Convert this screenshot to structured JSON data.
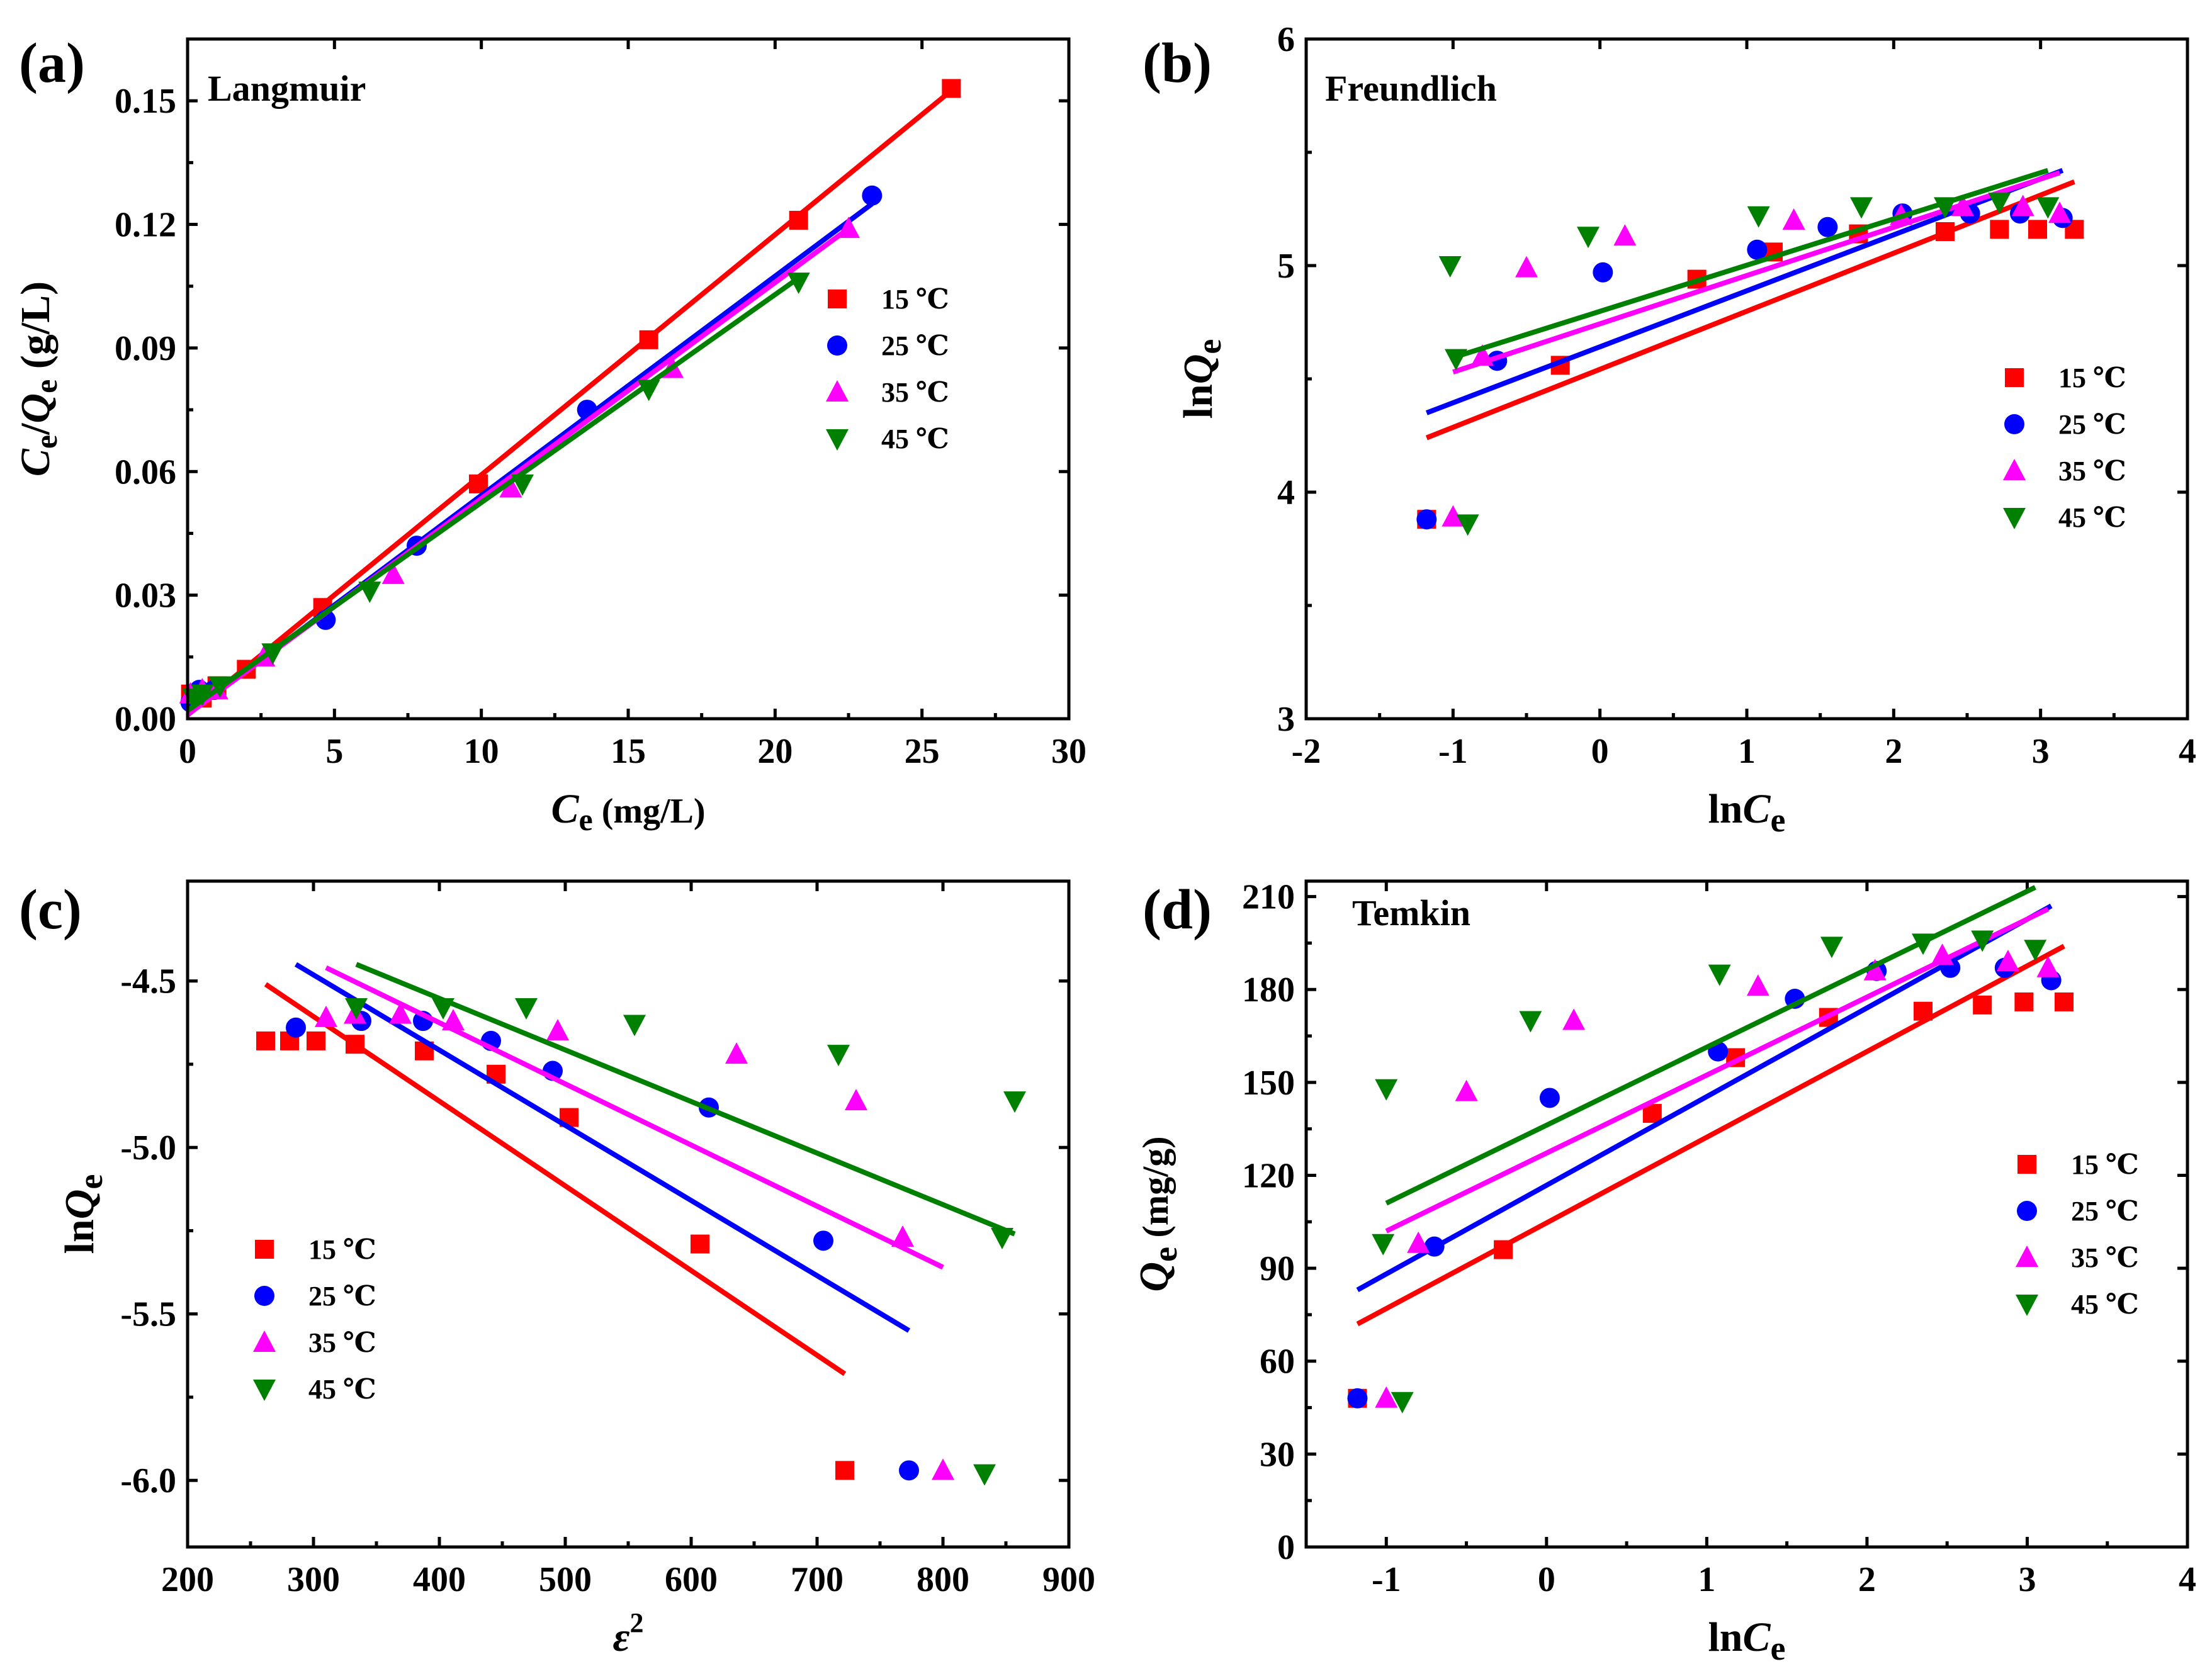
{
  "figure": {
    "domain": "adsorption isotherm fits"
  },
  "legend_labels": [
    "15 ℃",
    "25 ℃",
    "35 ℃",
    "45 ℃"
  ],
  "colors": {
    "s15": "#ff0000",
    "s25": "#0000ff",
    "s35": "#ff00ff",
    "s45": "#008000"
  },
  "markers": {
    "s15": "square",
    "s25": "circle",
    "s35": "triangle-up",
    "s45": "triangle-down"
  },
  "chart_data": [
    {
      "id": "a",
      "type": "scatter",
      "panel_label": "(a)",
      "annotation": "Langmuir",
      "title": "",
      "xlabel": {
        "main": "C",
        "sub": "e",
        "rest": " (mg/L)"
      },
      "ylabel": {
        "p1": "C",
        "s1": "e",
        "mid": "/",
        "p2": "Q",
        "s2": "e",
        "rest": " (g/L)"
      },
      "xlim": [
        0,
        30
      ],
      "ylim": [
        0,
        0.165
      ],
      "xticks": [
        0,
        5,
        10,
        15,
        20,
        25,
        30
      ],
      "yticks": [
        0.0,
        0.03,
        0.06,
        0.09,
        0.12,
        0.15
      ],
      "ytick_labels": [
        "0.00",
        "0.03",
        "0.06",
        "0.09",
        "0.12",
        "0.15"
      ],
      "legend_position": "middle-right",
      "series": [
        {
          "name": "15 ℃",
          "x": [
            0.1,
            0.5,
            1.0,
            2.0,
            4.6,
            9.9,
            15.7,
            20.8,
            26.0
          ],
          "y": [
            0.006,
            0.005,
            0.008,
            0.012,
            0.027,
            0.057,
            0.092,
            0.121,
            0.153
          ],
          "fit": [
            [
              0,
              0.0009
            ],
            [
              26,
              0.1525
            ]
          ]
        },
        {
          "name": "25 ℃",
          "x": [
            0.1,
            0.4,
            0.9,
            4.7,
            7.8,
            13.6,
            23.3
          ],
          "y": [
            0.004,
            0.007,
            0.007,
            0.024,
            0.042,
            0.075,
            0.127
          ],
          "fit": [
            [
              0,
              0.001
            ],
            [
              23.3,
              0.125
            ]
          ]
        },
        {
          "name": "35 ℃",
          "x": [
            0.1,
            0.5,
            1.0,
            2.6,
            7.0,
            11.0,
            16.5,
            22.5
          ],
          "y": [
            0.006,
            0.007,
            0.007,
            0.015,
            0.035,
            0.056,
            0.085,
            0.119
          ],
          "fit": [
            [
              0,
              0.001
            ],
            [
              22.5,
              0.119
            ]
          ]
        },
        {
          "name": "45 ℃",
          "x": [
            0.2,
            0.5,
            1.1,
            2.9,
            6.2,
            11.4,
            15.7,
            20.8
          ],
          "y": [
            0.005,
            0.006,
            0.008,
            0.016,
            0.031,
            0.057,
            0.08,
            0.106
          ],
          "fit": [
            [
              0,
              0.002
            ],
            [
              20.8,
              0.107
            ]
          ]
        }
      ]
    },
    {
      "id": "b",
      "type": "scatter",
      "panel_label": "(b)",
      "annotation": "Freundlich",
      "title": "",
      "xlabel": {
        "main": "ln",
        "ital": "C",
        "sub": "e"
      },
      "ylabel": {
        "main": "ln",
        "ital": "Q",
        "sub": "e"
      },
      "xlim": [
        -2,
        4
      ],
      "ylim": [
        3,
        6
      ],
      "xticks": [
        -2,
        -1,
        0,
        1,
        2,
        3,
        4
      ],
      "yticks": [
        3,
        4,
        5,
        6
      ],
      "ytick_labels": [
        "3",
        "4",
        "5",
        "6"
      ],
      "legend_position": "middle-right",
      "series": [
        {
          "name": "15 ℃",
          "x": [
            -1.18,
            -0.27,
            0.66,
            1.18,
            1.76,
            2.35,
            2.72,
            2.98,
            3.23
          ],
          "y": [
            3.88,
            4.56,
            4.94,
            5.06,
            5.14,
            5.15,
            5.16,
            5.16,
            5.16
          ],
          "fit": [
            [
              -1.18,
              4.24
            ],
            [
              3.23,
              5.37
            ]
          ]
        },
        {
          "name": "25 ℃",
          "x": [
            -1.18,
            -0.7,
            0.02,
            1.07,
            1.55,
            2.06,
            2.52,
            2.86,
            3.15
          ],
          "y": [
            3.88,
            4.58,
            4.97,
            5.07,
            5.17,
            5.23,
            5.23,
            5.23,
            5.21
          ],
          "fit": [
            [
              -1.18,
              4.35
            ],
            [
              3.15,
              5.42
            ]
          ]
        },
        {
          "name": "35 ℃",
          "x": [
            -1.0,
            -0.8,
            -0.5,
            0.17,
            1.32,
            2.05,
            2.47,
            2.88,
            3.13
          ],
          "y": [
            3.89,
            4.6,
            4.99,
            5.13,
            5.2,
            5.22,
            5.26,
            5.26,
            5.23
          ],
          "fit": [
            [
              -1.0,
              4.53
            ],
            [
              3.13,
              5.41
            ]
          ]
        },
        {
          "name": "45 ℃",
          "x": [
            -1.02,
            -0.9,
            -0.98,
            -0.08,
            1.08,
            1.78,
            2.35,
            2.72,
            3.05
          ],
          "y": [
            5.0,
            3.86,
            4.59,
            5.13,
            5.22,
            5.26,
            5.26,
            5.28,
            5.26
          ],
          "fit": [
            [
              -1.02,
              4.59
            ],
            [
              3.05,
              5.42
            ]
          ]
        }
      ]
    },
    {
      "id": "c",
      "type": "scatter",
      "panel_label": "(c)",
      "annotation": "",
      "title": "",
      "xlabel": {
        "main": "ε",
        "sup": "2"
      },
      "ylabel": {
        "main": "ln",
        "ital": "Q",
        "sub": "e"
      },
      "xlim": [
        200,
        900
      ],
      "ylim": [
        -6.2,
        -4.2
      ],
      "xticks": [
        200,
        300,
        400,
        500,
        600,
        700,
        800,
        900
      ],
      "yticks": [
        -6.0,
        -5.5,
        -5.0,
        -4.5
      ],
      "ytick_labels": [
        "-6.0",
        "-5.5",
        "-5.0",
        "-4.5"
      ],
      "legend_position": "lower-left",
      "series": [
        {
          "name": "15 ℃",
          "x": [
            262,
            281,
            302,
            333,
            388,
            445,
            503,
            607,
            722
          ],
          "y": [
            -4.68,
            -4.68,
            -4.68,
            -4.69,
            -4.71,
            -4.78,
            -4.91,
            -5.29,
            -5.97
          ],
          "fit": [
            [
              262,
              -4.51
            ],
            [
              722,
              -5.68
            ]
          ]
        },
        {
          "name": "25 ℃",
          "x": [
            286,
            338,
            387,
            441,
            490,
            614,
            705,
            773
          ],
          "y": [
            -4.64,
            -4.62,
            -4.62,
            -4.68,
            -4.77,
            -4.88,
            -5.28,
            -5.97
          ],
          "fit": [
            [
              286,
              -4.45
            ],
            [
              773,
              -5.55
            ]
          ]
        },
        {
          "name": "35 ℃",
          "x": [
            310,
            333,
            369,
            411,
            494,
            636,
            731,
            768,
            800
          ],
          "y": [
            -4.61,
            -4.6,
            -4.6,
            -4.62,
            -4.65,
            -4.72,
            -4.86,
            -5.27,
            -5.97
          ],
          "fit": [
            [
              310,
              -4.46
            ],
            [
              800,
              -5.36
            ]
          ]
        },
        {
          "name": "45 ℃",
          "x": [
            334,
            403,
            469,
            555,
            717,
            857,
            847,
            833
          ],
          "y": [
            -4.58,
            -4.58,
            -4.58,
            -4.63,
            -4.72,
            -4.86,
            -5.27,
            -5.98
          ],
          "fit": [
            [
              334,
              -4.45
            ],
            [
              857,
              -5.26
            ]
          ]
        }
      ]
    },
    {
      "id": "d",
      "type": "scatter",
      "panel_label": "(d)",
      "annotation": "Temkin",
      "title": "",
      "xlabel": {
        "main": "ln",
        "ital": "C",
        "sub": "e"
      },
      "ylabel": {
        "ital": "Q",
        "sub": "e",
        "rest": " (mg/g)"
      },
      "xlim": [
        -1.5,
        4
      ],
      "ylim": [
        0,
        215
      ],
      "xticks": [
        -1,
        0,
        1,
        2,
        3,
        4
      ],
      "yticks": [
        0,
        30,
        60,
        90,
        120,
        150,
        180,
        210
      ],
      "ytick_labels": [
        "0",
        "30",
        "60",
        "90",
        "120",
        "150",
        "180",
        "210"
      ],
      "legend_position": "middle-right",
      "series": [
        {
          "name": "15 ℃",
          "x": [
            -1.18,
            -0.27,
            0.66,
            1.18,
            1.76,
            2.35,
            2.72,
            2.98,
            3.23
          ],
          "y": [
            48,
            96,
            140,
            158,
            171,
            173,
            175,
            176,
            176
          ],
          "fit": [
            [
              -1.18,
              72
            ],
            [
              3.23,
              194
            ]
          ]
        },
        {
          "name": "25 ℃",
          "x": [
            -1.18,
            -0.7,
            0.02,
            1.07,
            1.55,
            2.06,
            2.52,
            2.86,
            3.15
          ],
          "y": [
            48,
            97,
            145,
            160,
            177,
            186,
            187,
            187,
            183
          ],
          "fit": [
            [
              -1.18,
              83
            ],
            [
              3.15,
              207
            ]
          ]
        },
        {
          "name": "35 ℃",
          "x": [
            -1.0,
            -0.8,
            -0.5,
            0.17,
            1.32,
            2.05,
            2.47,
            2.88,
            3.13
          ],
          "y": [
            48,
            98,
            147,
            170,
            181,
            186,
            191,
            189,
            187
          ],
          "fit": [
            [
              -1.0,
              102
            ],
            [
              3.13,
              206
            ]
          ]
        },
        {
          "name": "45 ℃",
          "x": [
            -0.9,
            -1.02,
            -1.0,
            -0.1,
            1.08,
            1.78,
            2.35,
            2.72,
            3.05
          ],
          "y": [
            47,
            98,
            148,
            170,
            185,
            194,
            195,
            196,
            193
          ],
          "fit": [
            [
              -1.0,
              111
            ],
            [
              3.05,
              213
            ]
          ]
        }
      ]
    }
  ]
}
